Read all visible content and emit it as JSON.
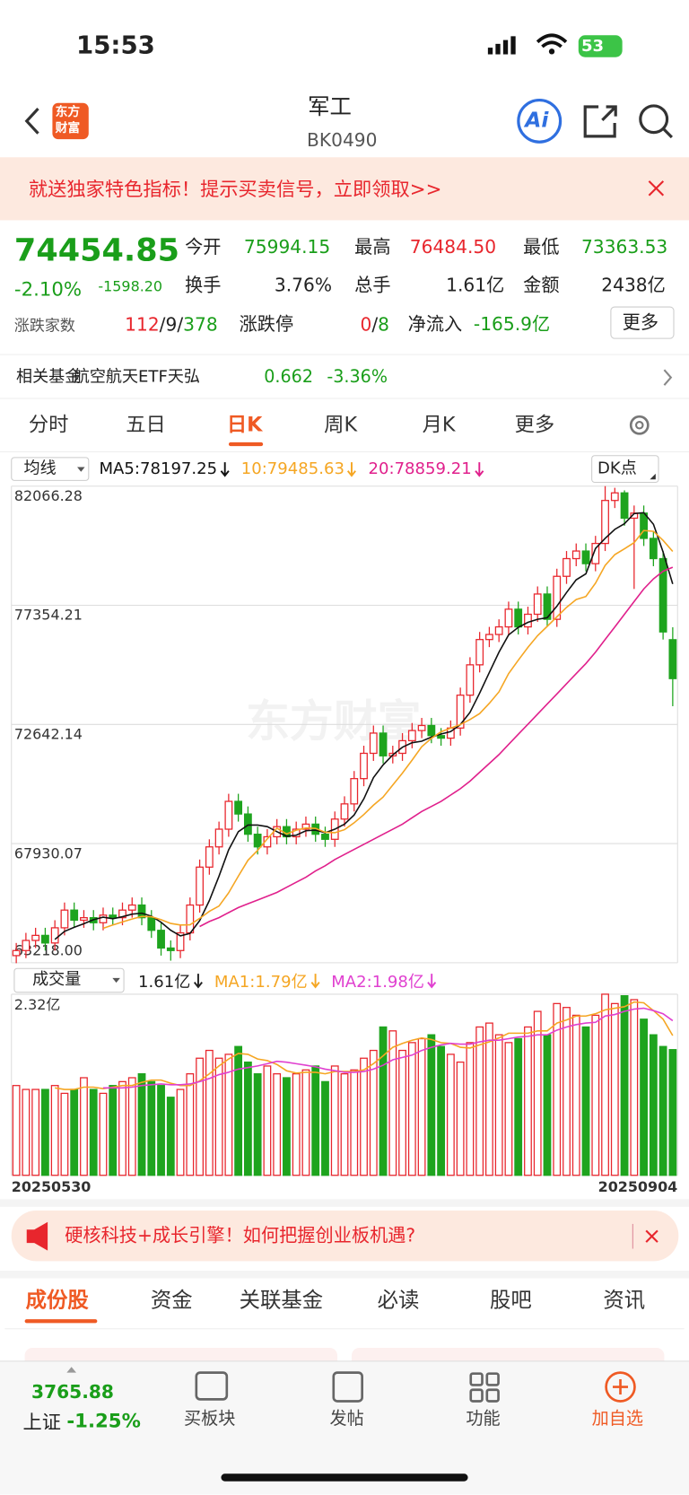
{
  "status": {
    "time": "15:53",
    "battery": "53"
  },
  "nav": {
    "logo": [
      "东方",
      "财富"
    ],
    "title": "军工",
    "code": "BK0490",
    "ai": "Ai"
  },
  "banner": {
    "text": "就送独家特色指标！提示买卖信号，立即领取>>"
  },
  "quote": {
    "price": "74454.85",
    "change_pct": "-2.10%",
    "change": "-1598.20",
    "open": {
      "label": "今开",
      "value": "75994.15"
    },
    "high": {
      "label": "最高",
      "value": "76484.50"
    },
    "low": {
      "label": "最低",
      "value": "73363.53"
    },
    "turnover": {
      "label": "换手",
      "value": "3.76%"
    },
    "volume": {
      "label": "总手",
      "value": "1.61亿"
    },
    "amount": {
      "label": "金额",
      "value": "2438亿"
    },
    "breadth": {
      "label": "涨跌家数",
      "parts": [
        "112",
        "/",
        "9",
        "/",
        "378"
      ]
    },
    "limit": {
      "label": "涨跌停",
      "parts": [
        "0",
        "/",
        "8"
      ]
    },
    "inflow": {
      "label": "净流入",
      "value": "-165.9亿"
    },
    "more": "更多"
  },
  "fund": {
    "label": "相关基金",
    "name": "航空航天ETF天弘",
    "price": "0.662",
    "change": "-3.36%"
  },
  "tabs": {
    "items": [
      "分时",
      "五日",
      "日K",
      "周K",
      "月K",
      "更多"
    ],
    "active": 2
  },
  "ma_legend": {
    "selector": "均线",
    "dk": "DK点"
  },
  "watermark": "东方财富",
  "vol_legend": {
    "selector": "成交量"
  },
  "ad": {
    "text": "硬核科技+成长引擎！如何把握创业板机遇?"
  },
  "sections": {
    "items": [
      "成份股",
      "资金",
      "关联基金",
      "必读",
      "股吧",
      "资讯"
    ],
    "active": 0
  },
  "bottom": {
    "index_value": "3765.88",
    "index_name": "上证",
    "index_change": "-1.25%",
    "items": [
      "买板块",
      "发帖",
      "功能",
      "加自选"
    ]
  },
  "chart_data": [
    {
      "type": "candlestick",
      "up_color": "#e8262d",
      "down_color": "#1ea41e",
      "ylim": [
        63218,
        82066.28
      ],
      "yticks": [
        {
          "value": 63218,
          "label": "63218.00"
        },
        67930.07,
        72642.14,
        77354.21,
        82066.28
      ],
      "grid": true,
      "candles": [
        [
          63500,
          64000,
          63200,
          63700
        ],
        [
          63700,
          64400,
          63400,
          64100
        ],
        [
          64100,
          64600,
          63800,
          64300
        ],
        [
          64300,
          64600,
          63700,
          64000
        ],
        [
          64000,
          64900,
          63700,
          64600
        ],
        [
          64600,
          65600,
          64300,
          65300
        ],
        [
          65300,
          65600,
          64600,
          64900
        ],
        [
          64900,
          65300,
          64600,
          65000
        ],
        [
          65000,
          65300,
          64500,
          64800
        ],
        [
          64800,
          65400,
          64500,
          65100
        ],
        [
          65100,
          65400,
          64700,
          65000
        ],
        [
          65000,
          65600,
          64700,
          65300
        ],
        [
          65300,
          65800,
          65000,
          65500
        ],
        [
          65500,
          65800,
          64700,
          65000
        ],
        [
          65000,
          65300,
          64200,
          64500
        ],
        [
          64500,
          64800,
          63500,
          63800
        ],
        [
          63800,
          64100,
          63300,
          63700
        ],
        [
          63700,
          64700,
          63400,
          64400
        ],
        [
          64400,
          65800,
          64100,
          65500
        ],
        [
          65500,
          67300,
          65200,
          67000
        ],
        [
          67000,
          68100,
          66700,
          67800
        ],
        [
          67800,
          68800,
          67500,
          68500
        ],
        [
          68500,
          69900,
          68200,
          69600
        ],
        [
          69600,
          69900,
          68800,
          69100
        ],
        [
          69100,
          69400,
          68000,
          68300
        ],
        [
          68300,
          68600,
          67500,
          67800
        ],
        [
          67800,
          68500,
          67500,
          68200
        ],
        [
          68200,
          68900,
          67900,
          68600
        ],
        [
          68600,
          68900,
          67900,
          68200
        ],
        [
          68200,
          68800,
          67900,
          68500
        ],
        [
          68500,
          69000,
          68200,
          68700
        ],
        [
          68700,
          69000,
          68000,
          68300
        ],
        [
          68300,
          68600,
          67800,
          68100
        ],
        [
          68100,
          69200,
          67800,
          68900
        ],
        [
          68900,
          69800,
          68600,
          69500
        ],
        [
          69500,
          70800,
          69200,
          70500
        ],
        [
          70500,
          71800,
          70200,
          71500
        ],
        [
          71500,
          72600,
          71200,
          72300
        ],
        [
          72300,
          72600,
          71100,
          71400
        ],
        [
          71400,
          71800,
          71100,
          71500
        ],
        [
          71500,
          72300,
          71200,
          72000
        ],
        [
          72000,
          72700,
          71700,
          72400
        ],
        [
          72400,
          72900,
          72100,
          72600
        ],
        [
          72600,
          72900,
          71900,
          72200
        ],
        [
          72200,
          72500,
          71800,
          72100
        ],
        [
          72100,
          72800,
          71800,
          72500
        ],
        [
          72500,
          74100,
          72200,
          73800
        ],
        [
          73800,
          75300,
          73500,
          75000
        ],
        [
          75000,
          76300,
          74700,
          76000
        ],
        [
          76000,
          76500,
          75700,
          76200
        ],
        [
          76200,
          76800,
          75900,
          76500
        ],
        [
          76500,
          77500,
          76200,
          77200
        ],
        [
          77200,
          77500,
          76200,
          76500
        ],
        [
          76500,
          77300,
          76200,
          77000
        ],
        [
          77000,
          78100,
          76700,
          77800
        ],
        [
          77800,
          78100,
          76500,
          76800
        ],
        [
          76800,
          78800,
          76500,
          78500
        ],
        [
          78500,
          79500,
          78200,
          79200
        ],
        [
          79200,
          79800,
          78900,
          79500
        ],
        [
          79500,
          79800,
          78700,
          79000
        ],
        [
          79000,
          80100,
          78700,
          79800
        ],
        [
          79800,
          82066.28,
          79500,
          81500
        ],
        [
          81500,
          82000,
          81200,
          81800
        ],
        [
          81800,
          81900,
          80500,
          80800
        ],
        [
          80800,
          81300,
          78000,
          81000
        ],
        [
          81000,
          81300,
          79700,
          80000
        ],
        [
          80000,
          80300,
          78900,
          79200
        ],
        [
          79200,
          79500,
          76000,
          76300
        ],
        [
          75994.15,
          76484.5,
          73363.53,
          74454.85
        ]
      ],
      "legend": [
        "MA5:78197.25",
        "10:79485.63",
        "20:78859.21"
      ],
      "series": [
        {
          "color": "#111111",
          "values": [
            null,
            null,
            null,
            null,
            64140,
            64460,
            64620,
            64760,
            64920,
            65020,
            64960,
            65040,
            65140,
            65180,
            65060,
            64820,
            64500,
            64280,
            64380,
            64880,
            65680,
            66640,
            67680,
            68400,
            68660,
            68660,
            68600,
            68400,
            68220,
            68260,
            68440,
            68460,
            68360,
            68500,
            68700,
            69060,
            69700,
            70540,
            71040,
            71440,
            71740,
            71920,
            71980,
            72140,
            72260,
            72360,
            72640,
            73120,
            73880,
            74700,
            75500,
            76180,
            76480,
            76680,
            76800,
            76860,
            77320,
            77860,
            78360,
            78600,
            79600,
            80000,
            80360,
            80580,
            80980,
            81020,
            80560,
            79460,
            78197.25
          ]
        },
        {
          "color": "#f5a623",
          "values": [
            null,
            null,
            null,
            null,
            null,
            null,
            null,
            null,
            null,
            64580,
            64710,
            64830,
            64950,
            65050,
            65040,
            64920,
            64770,
            64710,
            64720,
            64970,
            65250,
            65460,
            65980,
            66640,
            67270,
            67660,
            68120,
            68540,
            68310,
            68460,
            68550,
            68530,
            68380,
            68360,
            68480,
            68750,
            69080,
            69450,
            69770,
            70250,
            70720,
            71230,
            71760,
            72090,
            72350,
            72500,
            72640,
            72840,
            73070,
            73480,
            73930,
            74650,
            75180,
            75690,
            76150,
            76520,
            76900,
            77270,
            77580,
            77700,
            78230,
            78930,
            79360,
            79590,
            79830,
            80310,
            80280,
            79920,
            79485.63
          ]
        },
        {
          "color": "#e0208c",
          "values": [
            null,
            null,
            null,
            null,
            null,
            null,
            null,
            null,
            null,
            null,
            null,
            null,
            null,
            null,
            null,
            null,
            null,
            null,
            null,
            64650,
            64850,
            65000,
            65200,
            65400,
            65550,
            65700,
            65850,
            66000,
            66200,
            66400,
            66600,
            66850,
            67050,
            67300,
            67500,
            67700,
            67900,
            68100,
            68300,
            68500,
            68700,
            68950,
            69200,
            69400,
            69600,
            69850,
            70100,
            70400,
            70750,
            71100,
            71450,
            71850,
            72250,
            72650,
            73050,
            73450,
            73850,
            74250,
            74650,
            75050,
            75500,
            76000,
            76500,
            77000,
            77500,
            78000,
            78400,
            78700,
            78859.21
          ]
        }
      ]
    },
    {
      "type": "bar",
      "ylim": [
        0,
        2.32
      ],
      "yticks": [
        {
          "value": 2.32,
          "label": "2.32亿"
        }
      ],
      "categories": [
        "20250530",
        null,
        null,
        null,
        null,
        null,
        null,
        null,
        null,
        null,
        null,
        null,
        null,
        null,
        null,
        null,
        null,
        null,
        null,
        null,
        null,
        null,
        null,
        null,
        null,
        null,
        null,
        null,
        null,
        null,
        null,
        null,
        null,
        null,
        null,
        null,
        null,
        null,
        null,
        null,
        null,
        null,
        null,
        null,
        null,
        null,
        null,
        null,
        null,
        null,
        null,
        null,
        null,
        null,
        null,
        null,
        null,
        null,
        null,
        null,
        null,
        null,
        null,
        null,
        null,
        null,
        null,
        null,
        "20250904"
      ],
      "values": [
        1.15,
        1.1,
        1.1,
        1.1,
        1.15,
        1.05,
        1.1,
        1.25,
        1.1,
        1.05,
        1.15,
        1.2,
        1.25,
        1.3,
        1.2,
        1.15,
        1.0,
        1.1,
        1.3,
        1.5,
        1.6,
        1.5,
        1.55,
        1.65,
        1.45,
        1.3,
        1.4,
        1.3,
        1.25,
        1.3,
        1.35,
        1.4,
        1.2,
        1.4,
        1.3,
        1.35,
        1.5,
        1.6,
        1.9,
        1.85,
        1.6,
        1.7,
        1.75,
        1.8,
        1.65,
        1.55,
        1.45,
        1.7,
        1.9,
        1.95,
        1.8,
        1.7,
        1.75,
        1.9,
        2.1,
        1.8,
        2.2,
        2.15,
        2.05,
        1.9,
        2.05,
        2.32,
        2.2,
        2.3,
        2.25,
        2.0,
        1.8,
        1.65,
        1.61
      ],
      "legend": [
        "1.61亿",
        "MA1:1.79亿",
        "MA2:1.98亿"
      ],
      "series": [
        {
          "color": "#f5a623",
          "values": [
            null,
            null,
            null,
            null,
            1.12,
            1.1,
            1.1,
            1.13,
            1.13,
            1.11,
            1.13,
            1.15,
            1.15,
            1.19,
            1.22,
            1.22,
            1.18,
            1.15,
            1.15,
            1.21,
            1.3,
            1.4,
            1.49,
            1.56,
            1.55,
            1.49,
            1.47,
            1.42,
            1.34,
            1.31,
            1.32,
            1.32,
            1.3,
            1.33,
            1.33,
            1.33,
            1.35,
            1.43,
            1.53,
            1.64,
            1.69,
            1.73,
            1.76,
            1.74,
            1.7,
            1.69,
            1.64,
            1.63,
            1.67,
            1.71,
            1.76,
            1.82,
            1.82,
            1.82,
            1.85,
            1.85,
            1.95,
            1.99,
            2.04,
            2.04,
            2.07,
            2.12,
            2.14,
            2.16,
            2.22,
            2.21,
            2.11,
            2.0,
            1.79
          ]
        },
        {
          "color": "#e040d0",
          "values": [
            null,
            null,
            null,
            null,
            null,
            null,
            null,
            null,
            null,
            1.12,
            1.12,
            1.12,
            1.13,
            1.15,
            1.16,
            1.17,
            1.16,
            1.16,
            1.17,
            1.2,
            1.24,
            1.29,
            1.32,
            1.36,
            1.38,
            1.4,
            1.43,
            1.46,
            1.45,
            1.43,
            1.41,
            1.39,
            1.36,
            1.34,
            1.32,
            1.32,
            1.33,
            1.36,
            1.41,
            1.48,
            1.51,
            1.54,
            1.6,
            1.64,
            1.67,
            1.69,
            1.68,
            1.68,
            1.71,
            1.73,
            1.73,
            1.75,
            1.77,
            1.78,
            1.8,
            1.8,
            1.86,
            1.9,
            1.93,
            1.95,
            1.96,
            2.04,
            2.06,
            2.1,
            2.13,
            2.14,
            2.11,
            2.07,
            1.98
          ]
        }
      ]
    }
  ]
}
